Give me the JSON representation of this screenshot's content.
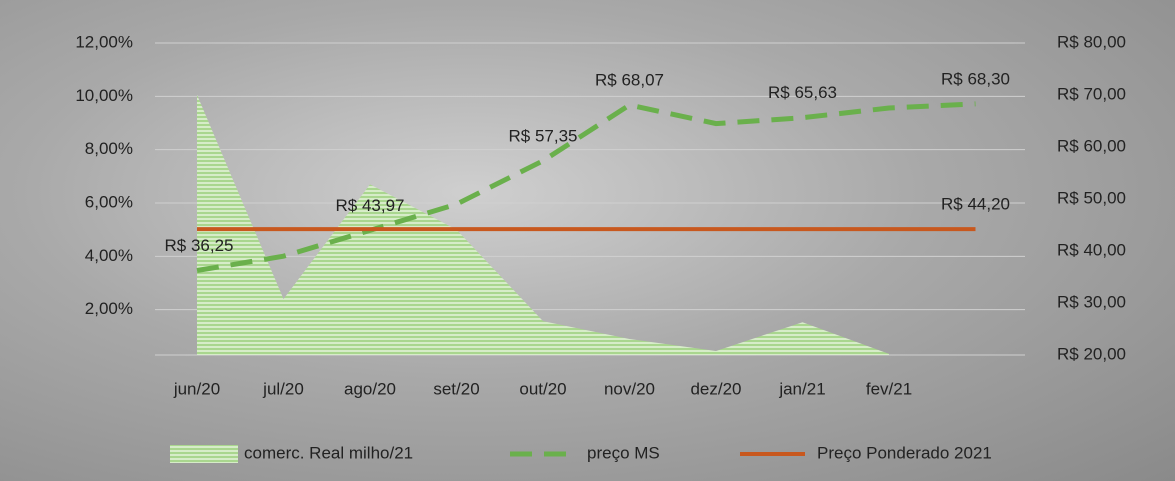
{
  "chart_data": {
    "type": "combo",
    "categories": [
      "jun/20",
      "jul/20",
      "ago/20",
      "set/20",
      "out/20",
      "nov/20",
      "dez/20",
      "jan/21",
      "fev/21",
      null
    ],
    "series": [
      {
        "name": "comerc. Real milho/21",
        "type": "area",
        "color": "#b6dca0",
        "axis": "y",
        "values": [
          10.06,
          2.4,
          6.7,
          5.0,
          1.57,
          0.9,
          0.45,
          1.53,
          0.34,
          null
        ]
      },
      {
        "name": "preço MS",
        "type": "line",
        "dash": true,
        "color": "#6ab04c",
        "axis": "y2",
        "values": [
          36.25,
          39,
          43.97,
          49,
          57.35,
          68.07,
          64.5,
          65.63,
          67.5,
          68.3
        ],
        "value_labels": [
          "R$ 36,25",
          null,
          "R$ 43,97",
          null,
          "R$ 57,35",
          "R$ 68,07",
          null,
          "R$ 65,63",
          null,
          "R$ 68,30"
        ]
      },
      {
        "name": "Preço Ponderado 2021",
        "type": "line",
        "dash": false,
        "color": "#c8581e",
        "axis": "y2",
        "values": [
          44.2,
          44.2,
          44.2,
          44.2,
          44.2,
          44.2,
          44.2,
          44.2,
          44.2,
          44.2
        ],
        "value_labels": [
          null,
          null,
          null,
          null,
          null,
          null,
          null,
          null,
          null,
          "R$ 44,20"
        ]
      }
    ],
    "ylim": [
      0.3,
      12
    ],
    "yticks": [
      {
        "value": 2,
        "label": "2,00%"
      },
      {
        "value": 4,
        "label": "4,00%"
      },
      {
        "value": 6,
        "label": "6,00%"
      },
      {
        "value": 8,
        "label": "8,00%"
      },
      {
        "value": 10,
        "label": "10,00%"
      },
      {
        "value": 12,
        "label": "12,00%"
      }
    ],
    "y2lim": [
      20,
      80
    ],
    "y2ticks": [
      {
        "value": 20,
        "label": "R$ 20,00"
      },
      {
        "value": 30,
        "label": "R$ 30,00"
      },
      {
        "value": 40,
        "label": "R$ 40,00"
      },
      {
        "value": 50,
        "label": "R$ 50,00"
      },
      {
        "value": 60,
        "label": "R$ 60,00"
      },
      {
        "value": 70,
        "label": "R$ 70,00"
      },
      {
        "value": 80,
        "label": "R$ 80,00"
      }
    ],
    "grid": true
  }
}
